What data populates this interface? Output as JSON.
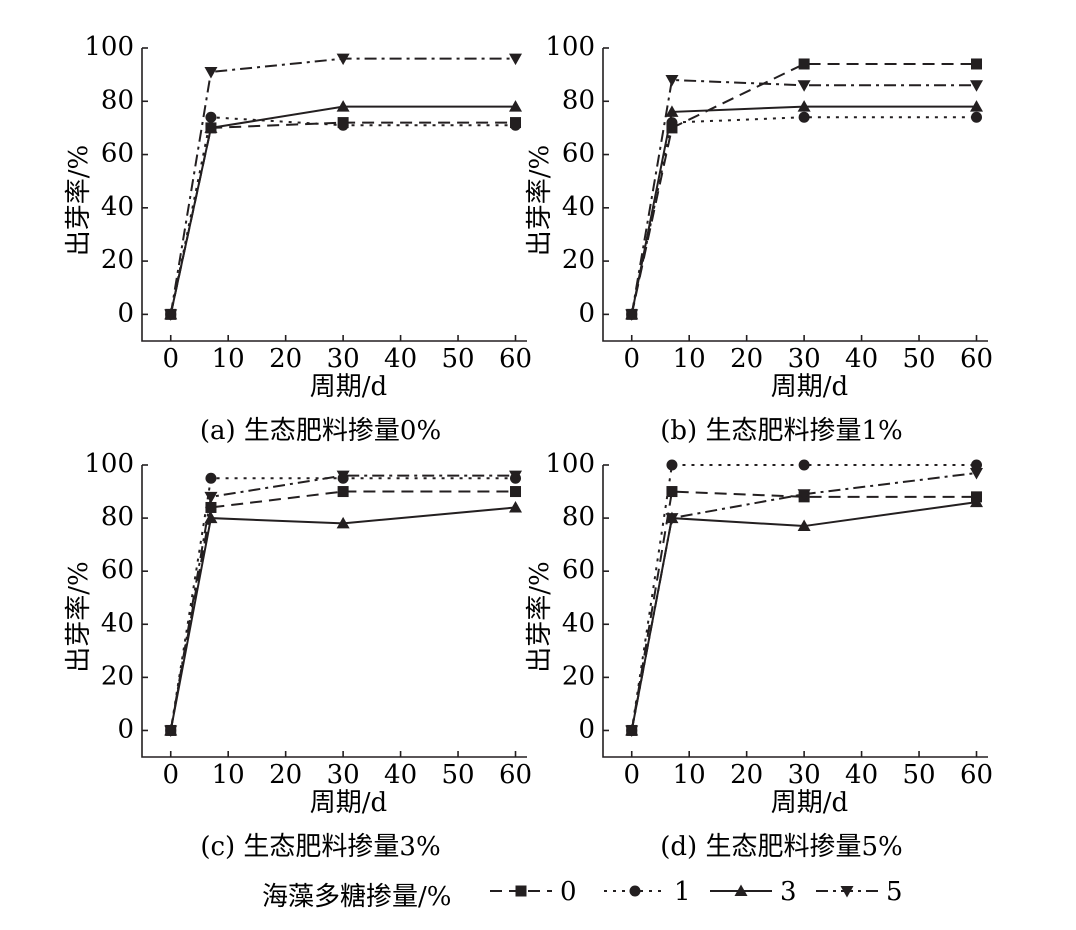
{
  "chart_data": [
    {
      "type": "line",
      "title": "(a) 生态肥料掺量0%",
      "xlabel": "周期/d",
      "ylabel": "出芽率/%",
      "xlim": [
        -5,
        62
      ],
      "ylim": [
        -10,
        100
      ],
      "xticks": [
        0,
        10,
        20,
        30,
        40,
        50,
        60
      ],
      "yticks": [
        0,
        20,
        40,
        60,
        80,
        100
      ],
      "x": [
        0,
        7,
        30,
        60
      ],
      "series": [
        {
          "name": "0",
          "values": [
            0,
            70,
            72,
            72
          ]
        },
        {
          "name": "1",
          "values": [
            0,
            74,
            71,
            71
          ]
        },
        {
          "name": "3",
          "values": [
            0,
            70,
            78,
            78
          ]
        },
        {
          "name": "5",
          "values": [
            0,
            91,
            96,
            96
          ]
        }
      ]
    },
    {
      "type": "line",
      "title": "(b) 生态肥料掺量1%",
      "xlabel": "周期/d",
      "ylabel": "出芽率/%",
      "xlim": [
        -5,
        62
      ],
      "ylim": [
        -10,
        100
      ],
      "xticks": [
        0,
        10,
        20,
        30,
        40,
        50,
        60
      ],
      "yticks": [
        0,
        20,
        40,
        60,
        80,
        100
      ],
      "x": [
        0,
        7,
        30,
        60
      ],
      "series": [
        {
          "name": "0",
          "values": [
            0,
            70,
            94,
            94
          ]
        },
        {
          "name": "1",
          "values": [
            0,
            72,
            74,
            74
          ]
        },
        {
          "name": "3",
          "values": [
            0,
            76,
            78,
            78
          ]
        },
        {
          "name": "5",
          "values": [
            0,
            88,
            86,
            86
          ]
        }
      ]
    },
    {
      "type": "line",
      "title": "(c) 生态肥料掺量3%",
      "xlabel": "周期/d",
      "ylabel": "出芽率/%",
      "xlim": [
        -5,
        62
      ],
      "ylim": [
        -10,
        100
      ],
      "xticks": [
        0,
        10,
        20,
        30,
        40,
        50,
        60
      ],
      "yticks": [
        0,
        20,
        40,
        60,
        80,
        100
      ],
      "x": [
        0,
        7,
        30,
        60
      ],
      "series": [
        {
          "name": "0",
          "values": [
            0,
            84,
            90,
            90
          ]
        },
        {
          "name": "1",
          "values": [
            0,
            95,
            95,
            95
          ]
        },
        {
          "name": "3",
          "values": [
            0,
            80,
            78,
            84
          ]
        },
        {
          "name": "5",
          "values": [
            0,
            88,
            96,
            96
          ]
        }
      ]
    },
    {
      "type": "line",
      "title": "(d) 生态肥料掺量5%",
      "xlabel": "周期/d",
      "ylabel": "出芽率/%",
      "xlim": [
        -5,
        62
      ],
      "ylim": [
        -10,
        100
      ],
      "xticks": [
        0,
        10,
        20,
        30,
        40,
        50,
        60
      ],
      "yticks": [
        0,
        20,
        40,
        60,
        80,
        100
      ],
      "x": [
        0,
        7,
        30,
        60
      ],
      "series": [
        {
          "name": "0",
          "values": [
            0,
            90,
            88,
            88
          ]
        },
        {
          "name": "1",
          "values": [
            0,
            100,
            100,
            100
          ]
        },
        {
          "name": "3",
          "values": [
            0,
            80,
            77,
            86
          ]
        },
        {
          "name": "5",
          "values": [
            0,
            80,
            89,
            97
          ]
        }
      ]
    }
  ],
  "legend": {
    "title": "海藻多糖掺量/%",
    "placement": "bottom-center",
    "entries": [
      "0",
      "1",
      "3",
      "5"
    ]
  },
  "series_styles": [
    {
      "dash": "12,7",
      "marker": "square"
    },
    {
      "dash": "3,6",
      "marker": "circle"
    },
    {
      "dash": "",
      "marker": "triangle-up"
    },
    {
      "dash": "12,5,3,5",
      "marker": "triangle-down"
    }
  ],
  "colors": {
    "line": "#231f20",
    "axis": "#231f20"
  }
}
